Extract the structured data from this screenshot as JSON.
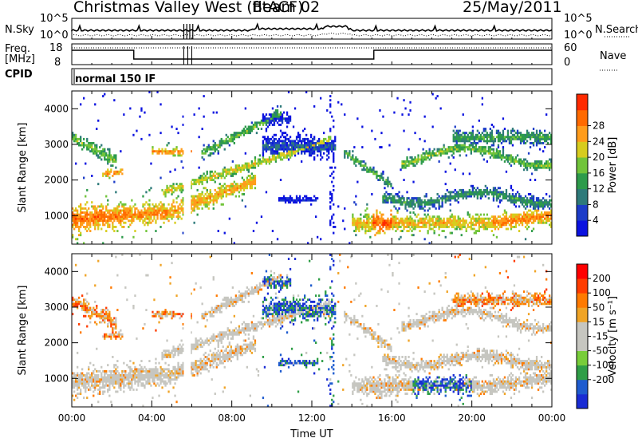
{
  "header": {
    "station": "Christmas Valley West (fitACF)",
    "beam": "Beam 02",
    "date": "25/May/2011"
  },
  "status_panels": {
    "nsky_label": "N.Sky",
    "nsky_ticks": [
      "10^5",
      "10^0"
    ],
    "nsearch_label": "N.Search",
    "nsearch_ticks": [
      "10^5",
      "10^0"
    ],
    "freq_label": "Freq.",
    "freq_unit": "[MHz]",
    "freq_ticks": [
      "18",
      "8"
    ],
    "nave_label": "Nave",
    "nave_ticks": [
      "60",
      "0"
    ],
    "cpid_label": "CPID",
    "cpid_value": "normal 150 IF"
  },
  "colors": {
    "power_scale": [
      "#0b12e0",
      "#1c3cc8",
      "#2e7a7a",
      "#2d9b4b",
      "#71c43a",
      "#d7cc1e",
      "#ff9c1b",
      "#ff6a00",
      "#ff2a00"
    ],
    "velocity_scale": [
      "#1a2cd4",
      "#1f5ccf",
      "#2f9e47",
      "#78cd3a",
      "#c6c6c0",
      "#c6c6c0",
      "#f0a426",
      "#ff7a00",
      "#ff3c00",
      "#ff0000"
    ]
  },
  "chart_data": [
    {
      "type": "heatmap",
      "quantity": "Power",
      "ylabel": "Slant Range [km]",
      "yticks": [
        "1000",
        "2000",
        "3000",
        "4000"
      ],
      "ylim": [
        200,
        4500
      ],
      "xlim_hours": [
        0,
        24
      ],
      "xticks": [
        "00:00",
        "04:00",
        "08:00",
        "12:00",
        "16:00",
        "20:00",
        "00:00"
      ],
      "colorbar_label": "Power [dB]",
      "colorbar_ticks": [
        "4",
        "8",
        "12",
        "16",
        "20",
        "24",
        "28"
      ]
    },
    {
      "type": "heatmap",
      "quantity": "Velocity",
      "ylabel": "Slant Range [km]",
      "yticks": [
        "1000",
        "2000",
        "3000",
        "4000"
      ],
      "ylim": [
        200,
        4500
      ],
      "xlim_hours": [
        0,
        24
      ],
      "xticks": [
        "00:00",
        "04:00",
        "08:00",
        "12:00",
        "16:00",
        "20:00",
        "00:00"
      ],
      "xlabel": "Time UT",
      "colorbar_label": "Velocity [m s⁻¹]",
      "colorbar_ticks": [
        "200",
        "100",
        "50",
        "15",
        "-15",
        "-50",
        "-100",
        "-200"
      ]
    }
  ]
}
